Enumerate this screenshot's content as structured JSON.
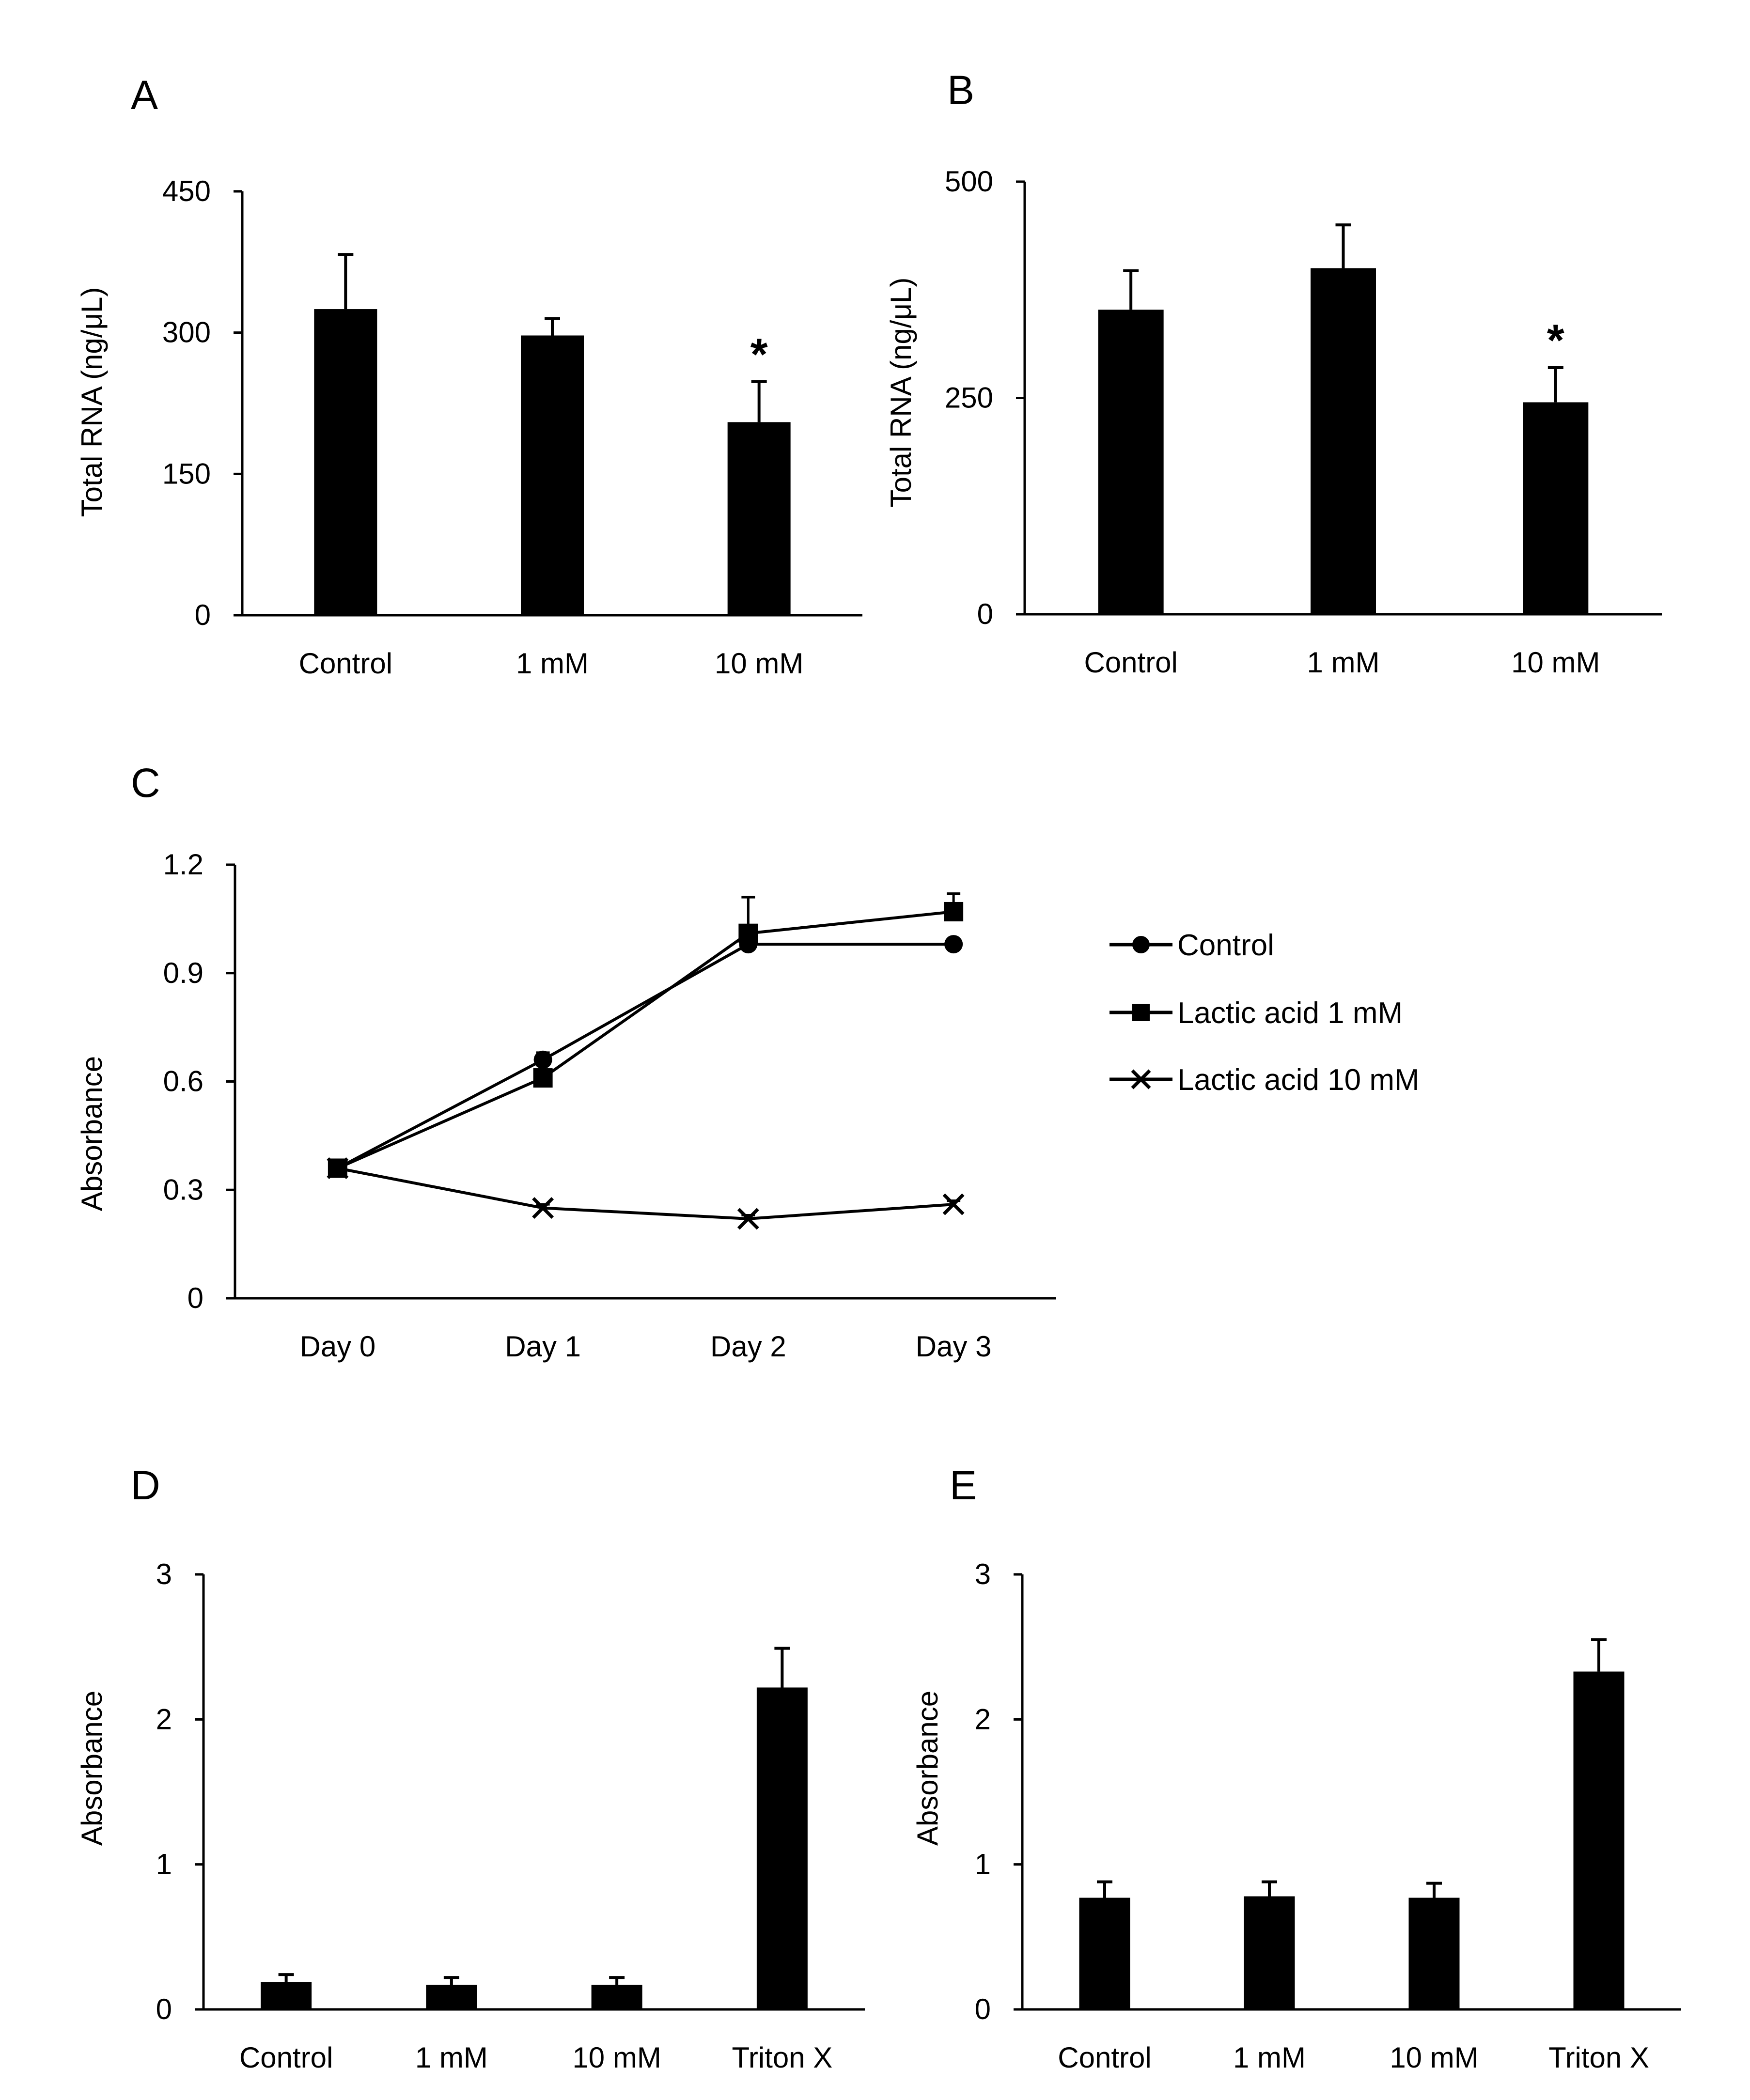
{
  "figure": {
    "colors": {
      "ink": "#000000",
      "background": "#ffffff"
    },
    "markers": {
      "control": "circle",
      "lactic_1mM": "square",
      "lactic_10mM": "cross"
    }
  },
  "chart_data": [
    {
      "panel": "A",
      "type": "bar",
      "ylabel": "Total RNA (ng/μL)",
      "ylim": [
        0,
        450
      ],
      "yticks": [
        0,
        150,
        300,
        450
      ],
      "categories": [
        "Control",
        "1 mM",
        "10 mM"
      ],
      "values": [
        325,
        297,
        205
      ],
      "errors": [
        58,
        18,
        43
      ],
      "significance": [
        "",
        "",
        "*"
      ]
    },
    {
      "panel": "B",
      "type": "bar",
      "ylabel": "Total RNA (ng/μL)",
      "ylim": [
        0,
        500
      ],
      "yticks": [
        0,
        250,
        500
      ],
      "categories": [
        "Control",
        "1 mM",
        "10 mM"
      ],
      "values": [
        352,
        400,
        245
      ],
      "errors": [
        45,
        50,
        40
      ],
      "significance": [
        "",
        "",
        "*"
      ]
    },
    {
      "panel": "C",
      "type": "line",
      "ylabel": "Absorbance",
      "ylim": [
        0,
        1.2
      ],
      "yticks": [
        "0",
        "0.3",
        "0.6",
        "0.9",
        "1.2"
      ],
      "categories": [
        "Day 0",
        "Day 1",
        "Day 2",
        "Day 3"
      ],
      "series": [
        {
          "name": "Control",
          "marker": "circle",
          "values": [
            0.36,
            0.66,
            0.98,
            0.98
          ],
          "errors": [
            0.01,
            0.02,
            0.03,
            0.01
          ]
        },
        {
          "name": "Lactic acid 1 mM",
          "marker": "square",
          "values": [
            0.36,
            0.61,
            1.01,
            1.07
          ],
          "errors": [
            0.01,
            0.02,
            0.1,
            0.05
          ]
        },
        {
          "name": "Lactic acid 10 mM",
          "marker": "cross",
          "values": [
            0.36,
            0.25,
            0.22,
            0.26
          ],
          "errors": [
            0.01,
            0.01,
            0.01,
            0.01
          ]
        }
      ],
      "legend": "right"
    },
    {
      "panel": "D",
      "type": "bar",
      "ylabel": "Absorbance",
      "ylim": [
        0,
        3
      ],
      "yticks": [
        0,
        1,
        2,
        3
      ],
      "categories": [
        "Control",
        "1 mM",
        "10 mM",
        "Triton X"
      ],
      "values": [
        0.19,
        0.17,
        0.17,
        2.22
      ],
      "errors": [
        0.05,
        0.05,
        0.05,
        0.27
      ],
      "significance": [
        "",
        "",
        "",
        ""
      ]
    },
    {
      "panel": "E",
      "type": "bar",
      "ylabel": "Absorbance",
      "ylim": [
        0,
        3
      ],
      "yticks": [
        0,
        1,
        2,
        3
      ],
      "categories": [
        "Control",
        "1 mM",
        "10 mM",
        "Triton X"
      ],
      "values": [
        0.77,
        0.78,
        0.77,
        2.33
      ],
      "errors": [
        0.11,
        0.1,
        0.1,
        0.22
      ],
      "significance": [
        "",
        "",
        "",
        ""
      ]
    }
  ]
}
